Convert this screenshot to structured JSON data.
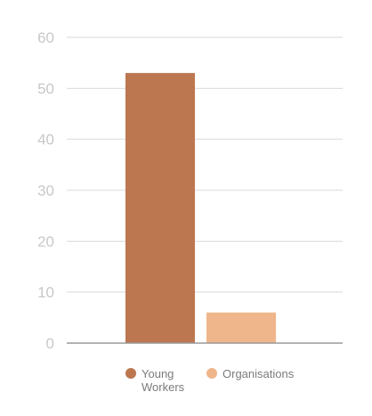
{
  "chart_data": {
    "type": "bar",
    "categories": [
      "Young Workers",
      "Organisations"
    ],
    "series": [
      {
        "name": "Young Workers",
        "values": [
          53,
          null
        ],
        "color": "#bc7750"
      },
      {
        "name": "Organisations",
        "values": [
          null,
          6
        ],
        "color": "#efb68b"
      }
    ],
    "ylim": [
      0,
      60
    ],
    "yticks": [
      "0",
      "10",
      "20",
      "30",
      "40",
      "50",
      "60"
    ],
    "grid": true,
    "legend_position": "bottom",
    "legend": [
      {
        "label_lines": [
          "Young",
          "Workers"
        ],
        "color": "#bc7750"
      },
      {
        "label_lines": [
          "Organisations"
        ],
        "color": "#efb68b"
      }
    ]
  }
}
